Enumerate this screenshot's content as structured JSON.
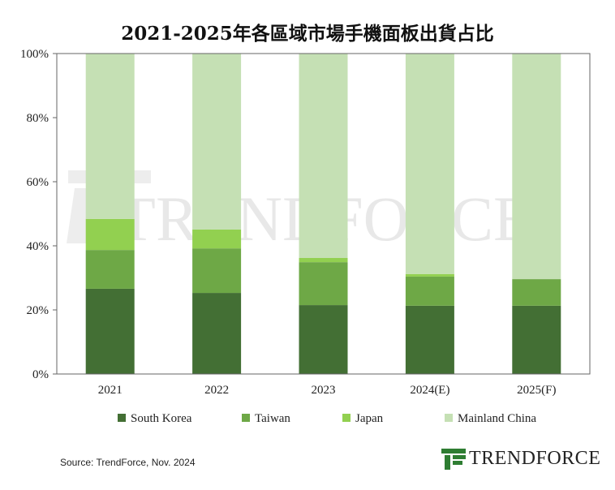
{
  "chart_data": {
    "type": "bar",
    "stacked": true,
    "title": "2021-2025年各區域市場手機面板出貨占比",
    "xlabel": "",
    "ylabel": "",
    "ylim": [
      0,
      100
    ],
    "yticks": [
      "0%",
      "20%",
      "40%",
      "60%",
      "80%",
      "100%"
    ],
    "categories": [
      "2021",
      "2022",
      "2023",
      "2024(E)",
      "2025(F)"
    ],
    "series": [
      {
        "name": "South Korea",
        "color": "#436f34",
        "values": [
          26.6,
          25.3,
          21.5,
          21.3,
          21.3
        ]
      },
      {
        "name": "Taiwan",
        "color": "#6ea846",
        "values": [
          12.1,
          13.9,
          13.4,
          9.1,
          8.3
        ]
      },
      {
        "name": "Japan",
        "color": "#92d050",
        "values": [
          9.7,
          5.9,
          1.3,
          0.8,
          0.0
        ]
      },
      {
        "name": "Mainland China",
        "color": "#c5e0b4",
        "values": [
          51.6,
          54.9,
          63.8,
          68.8,
          70.4
        ]
      }
    ],
    "legend_position": "bottom",
    "grid": false
  },
  "watermark": "TRENDFORCE",
  "footer": {
    "source": "Source: TrendForce, Nov. 2024",
    "logo": "TRENDFORCE"
  }
}
